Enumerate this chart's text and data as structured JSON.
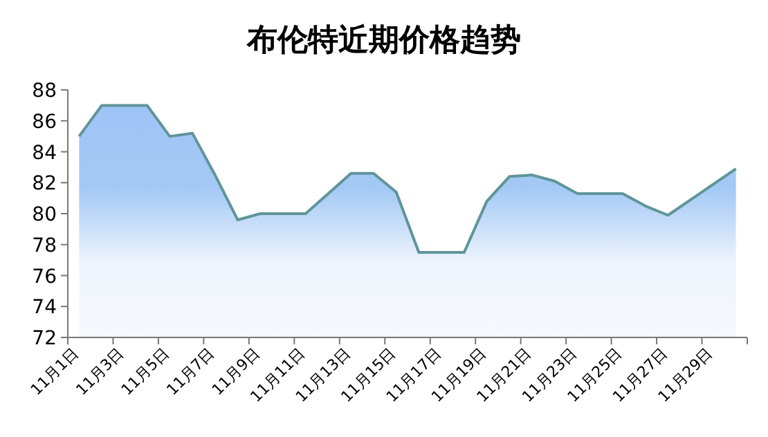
{
  "chart_data": {
    "type": "area",
    "title": "布伦特近期价格趋势",
    "categories": [
      "11月1日",
      null,
      "11月3日",
      null,
      "11月5日",
      null,
      "11月7日",
      null,
      "11月9日",
      null,
      "11月11日",
      null,
      "11月13日",
      null,
      "11月15日",
      null,
      "11月17日",
      null,
      "11月19日",
      null,
      "11月21日",
      null,
      "11月23日",
      null,
      "11月25日",
      null,
      "11月27日",
      null,
      "11月29日",
      null
    ],
    "series": [
      {
        "color": "#5f9599",
        "values": [
          85,
          87,
          87,
          87,
          85,
          85.2,
          82.5,
          79.6,
          80,
          80,
          80,
          81.3,
          82.6,
          82.6,
          81.4,
          77.5,
          77.5,
          77.5,
          80.8,
          82.4,
          82.5,
          82.1,
          81.3,
          81.3,
          81.3,
          80.5,
          79.9,
          80.9,
          81.9,
          82.9
        ]
      }
    ],
    "ylim": [
      72,
      88
    ],
    "yticks": [
      72,
      74,
      76,
      78,
      80,
      82,
      84,
      86,
      88
    ],
    "grid": false,
    "marker": "none",
    "line_style": "solid"
  }
}
